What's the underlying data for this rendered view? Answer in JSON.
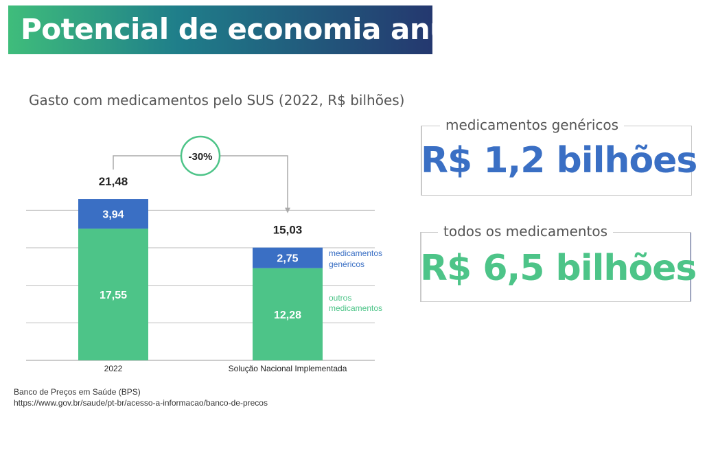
{
  "header": {
    "title": "Potencial de economia anual"
  },
  "colors": {
    "generic": "#3a6fc4",
    "others": "#4dc488",
    "accent_circle": "#4dc488",
    "grid": "#bbbbbb"
  },
  "chart_data": {
    "type": "bar",
    "stacked": true,
    "title": "Gasto com medicamentos pelo SUS (2022, R$ bilhões)",
    "categories": [
      "2022",
      "Solução Nacional Implementada"
    ],
    "series": [
      {
        "name": "outros medicamentos",
        "values": [
          17.55,
          12.28
        ],
        "labels": [
          "17,55",
          "12,28"
        ]
      },
      {
        "name": "medicamentos genéricos",
        "values": [
          3.94,
          2.75
        ],
        "labels": [
          "3,94",
          "2,75"
        ]
      }
    ],
    "totals": [
      21.48,
      15.03
    ],
    "total_labels": [
      "21,48",
      "15,03"
    ],
    "annotation": "-30%",
    "legend": {
      "generic": [
        "medicamentos",
        "genéricos"
      ],
      "others": [
        "outros",
        "medicamentos"
      ],
      "placement": "right"
    },
    "grid": true,
    "ylim": [
      0,
      30
    ]
  },
  "cards": [
    {
      "label": "medicamentos genéricos",
      "value": "R$ 1,2 bilhões"
    },
    {
      "label": "todos os medicamentos",
      "value": "R$ 6,5 bilhões"
    }
  ],
  "source": {
    "line1": "Banco de Preços em Saúde (BPS)",
    "line2": "https://www.gov.br/saude/pt-br/acesso-a-informacao/banco-de-precos"
  }
}
